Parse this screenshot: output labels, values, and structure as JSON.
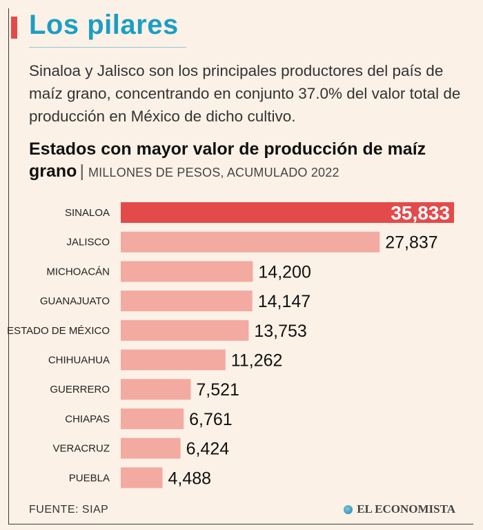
{
  "header": {
    "title": "Los pilares",
    "intro": "Sinaloa y Jalisco son los principales productores del país de maíz grano, concentrando en conjunto 37.0% del valor total de producción en México de dicho cultivo.",
    "chart_title": "Estados con mayor valor de producción de maíz grano",
    "chart_subtitle": "MILLONES DE PESOS, ACUMULADO 2022"
  },
  "footer": {
    "source": "FUENTE: SIAP",
    "brand": "EL ECONOMISTA"
  },
  "colors": {
    "highlight": "#e34b4b",
    "bar": "#f3aaa1",
    "title": "#1b9ec4"
  },
  "chart_data": {
    "type": "bar",
    "orientation": "horizontal",
    "title": "Estados con mayor valor de producción de maíz grano",
    "subtitle": "MILLONES DE PESOS, ACUMULADO 2022",
    "categories": [
      "SINALOA",
      "JALISCO",
      "MICHOACÁN",
      "GUANAJUATO",
      "ESTADO DE MÉXICO",
      "CHIHUAHUA",
      "GUERRERO",
      "CHIAPAS",
      "VERACRUZ",
      "PUEBLA"
    ],
    "values": [
      35833,
      27837,
      14200,
      14147,
      13753,
      11262,
      7521,
      6761,
      6424,
      4488
    ],
    "value_labels": [
      "35,833",
      "27,837",
      "14,200",
      "14,147",
      "13,753",
      "11,262",
      "7,521",
      "6,761",
      "6,424",
      "4,488"
    ],
    "highlight_index": 0,
    "xlim": [
      0,
      35833
    ],
    "grid": false,
    "legend": false
  }
}
